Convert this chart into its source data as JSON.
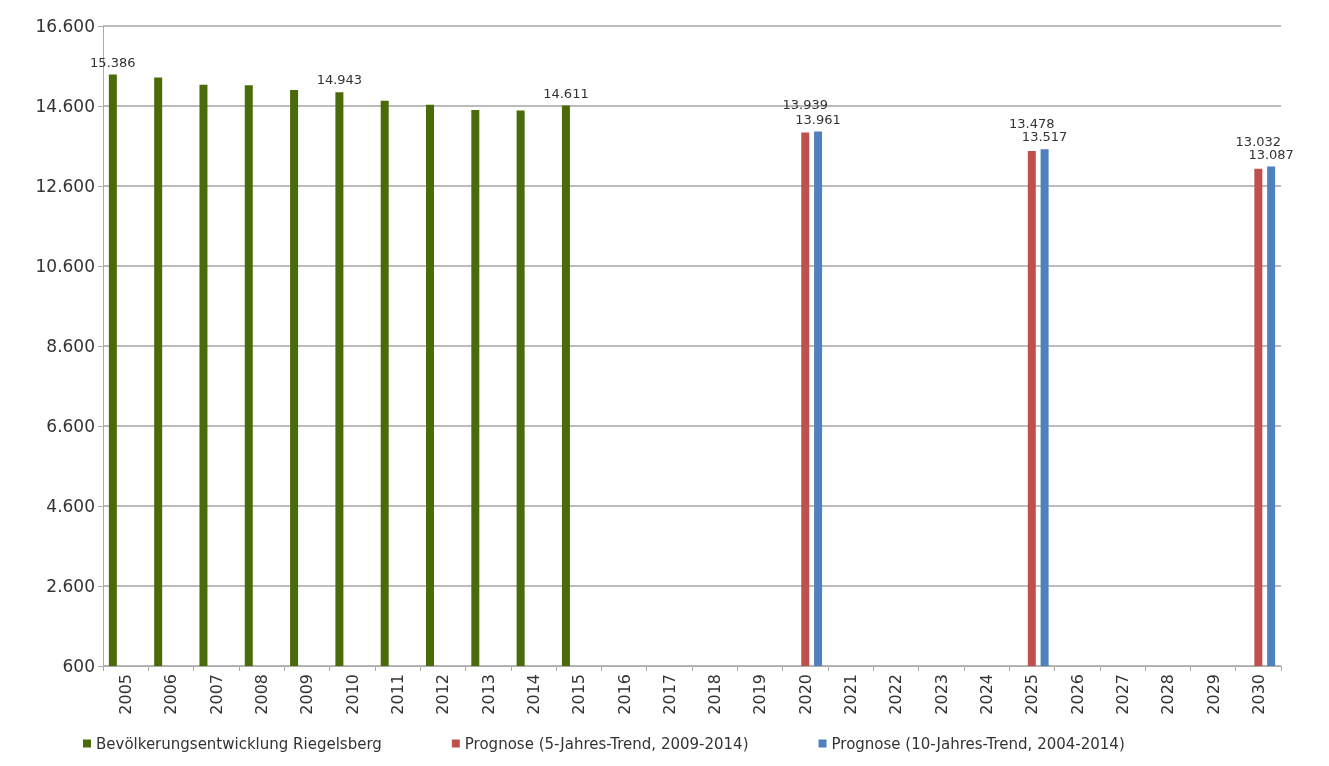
{
  "chart_data": {
    "type": "bar",
    "categories": [
      "2005",
      "2006",
      "2007",
      "2008",
      "2009",
      "2010",
      "2011",
      "2012",
      "2013",
      "2014",
      "2015",
      "2016",
      "2017",
      "2018",
      "2019",
      "2020",
      "2021",
      "2022",
      "2023",
      "2024",
      "2025",
      "2026",
      "2027",
      "2028",
      "2029",
      "2030"
    ],
    "series": [
      {
        "name": "Bevölkerungsentwicklung Riegelsberg",
        "color": "#4a6b0a",
        "values": [
          15386,
          15310,
          15130,
          15120,
          15000,
          14943,
          14730,
          14630,
          14500,
          14490,
          14611,
          null,
          null,
          null,
          null,
          null,
          null,
          null,
          null,
          null,
          null,
          null,
          null,
          null,
          null,
          null
        ],
        "value_labels": [
          "15.386",
          null,
          null,
          null,
          null,
          "14.943",
          null,
          null,
          null,
          null,
          "14.611",
          null,
          null,
          null,
          null,
          null,
          null,
          null,
          null,
          null,
          null,
          null,
          null,
          null,
          null,
          null
        ]
      },
      {
        "name": "Prognose (5-Jahres-Trend, 2009-2014)",
        "color": "#c0504d",
        "values": [
          null,
          null,
          null,
          null,
          null,
          null,
          null,
          null,
          null,
          null,
          null,
          null,
          null,
          null,
          null,
          13939,
          null,
          null,
          null,
          null,
          13478,
          null,
          null,
          null,
          null,
          13032
        ],
        "value_labels": [
          null,
          null,
          null,
          null,
          null,
          null,
          null,
          null,
          null,
          null,
          null,
          null,
          null,
          null,
          null,
          "13.939",
          null,
          null,
          null,
          null,
          "13.478",
          null,
          null,
          null,
          null,
          "13.032"
        ]
      },
      {
        "name": "Prognose (10-Jahres-Trend, 2004-2014)",
        "color": "#4f81bd",
        "values": [
          null,
          null,
          null,
          null,
          null,
          null,
          null,
          null,
          null,
          null,
          null,
          null,
          null,
          null,
          null,
          13961,
          null,
          null,
          null,
          null,
          13517,
          null,
          null,
          null,
          null,
          13087
        ],
        "value_labels": [
          null,
          null,
          null,
          null,
          null,
          null,
          null,
          null,
          null,
          null,
          null,
          null,
          null,
          null,
          null,
          "13.961",
          null,
          null,
          null,
          null,
          "13.517",
          null,
          null,
          null,
          null,
          "13.087"
        ]
      }
    ],
    "ylim": [
      600,
      16600
    ],
    "yticks": [
      {
        "value": 600,
        "label": "600"
      },
      {
        "value": 2600,
        "label": "2.600"
      },
      {
        "value": 4600,
        "label": "4.600"
      },
      {
        "value": 6600,
        "label": "6.600"
      },
      {
        "value": 8600,
        "label": "8.600"
      },
      {
        "value": 10600,
        "label": "10.600"
      },
      {
        "value": 12600,
        "label": "12.600"
      },
      {
        "value": 14600,
        "label": "14.600"
      },
      {
        "value": 16600,
        "label": "16.600"
      }
    ],
    "grid": "y",
    "legend": "bottom"
  }
}
